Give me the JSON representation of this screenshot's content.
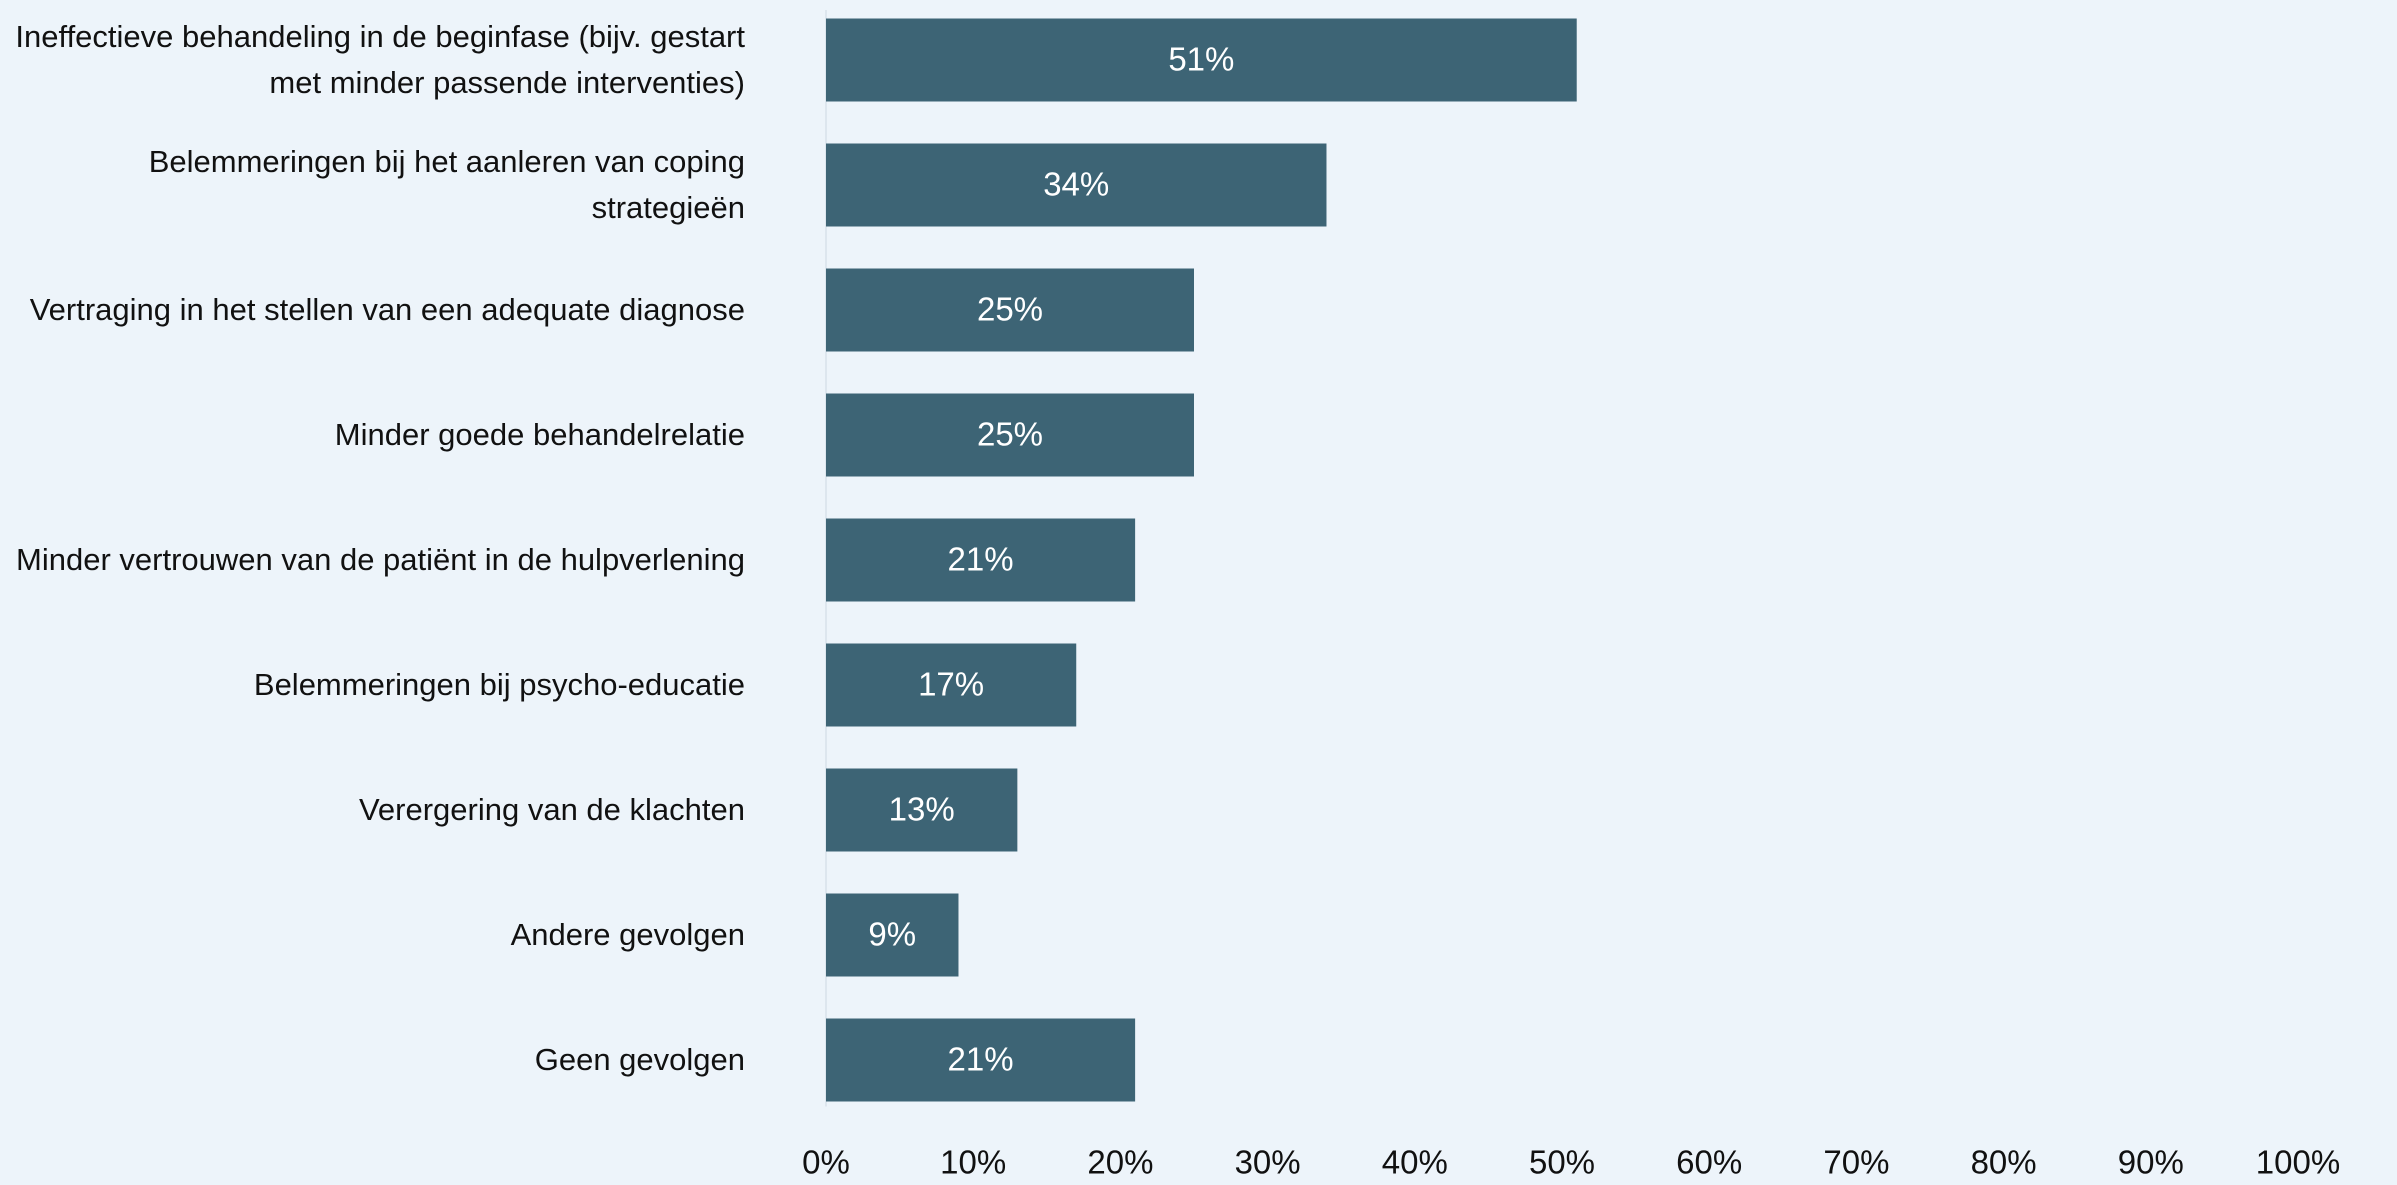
{
  "chart_data": {
    "type": "bar",
    "orientation": "horizontal",
    "categories": [
      "Ineffectieve behandeling in de beginfase (bijv. gestart met minder passende interventies)",
      "Belemmeringen bij het aanleren van coping strategieën",
      "Vertraging in het stellen van een adequate diagnose",
      "Minder goede behandelrelatie",
      "Minder vertrouwen van de patiënt in de hulpverlening",
      "Belemmeringen bij psycho-educatie",
      "Verergering van de klachten",
      "Andere gevolgen",
      "Geen gevolgen"
    ],
    "values": [
      51,
      34,
      25,
      25,
      21,
      17,
      13,
      9,
      21
    ],
    "value_labels": [
      "51%",
      "34%",
      "25%",
      "25%",
      "21%",
      "17%",
      "13%",
      "9%",
      "21%"
    ],
    "color": "#3d6475",
    "xlim": [
      0,
      100
    ],
    "xticks": [
      {
        "value": 0,
        "label": "0%"
      },
      {
        "value": 10,
        "label": "10%"
      },
      {
        "value": 20,
        "label": "20%"
      },
      {
        "value": 30,
        "label": "30%"
      },
      {
        "value": 40,
        "label": "40%"
      },
      {
        "value": 50,
        "label": "50%"
      },
      {
        "value": 60,
        "label": "60%"
      },
      {
        "value": 70,
        "label": "70%"
      },
      {
        "value": 80,
        "label": "80%"
      },
      {
        "value": 90,
        "label": "90%"
      },
      {
        "value": 100,
        "label": "100%"
      }
    ],
    "grid": false
  }
}
